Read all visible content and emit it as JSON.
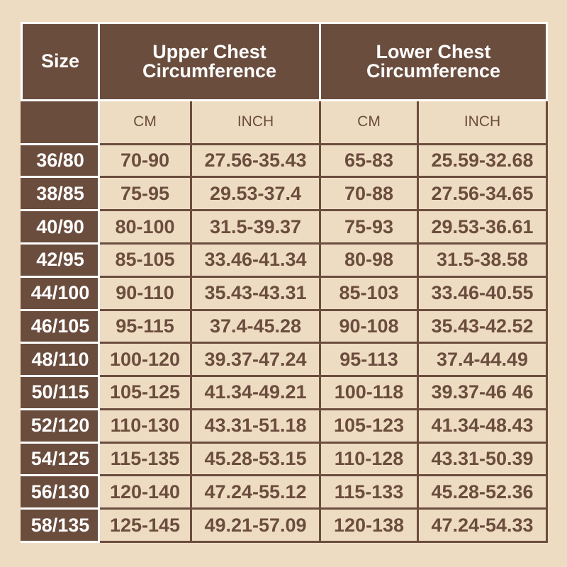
{
  "header": {
    "size": "Size",
    "upper": "Upper Chest Circumference",
    "lower": "Lower Chest Circumference",
    "units": [
      "CM",
      "INCH",
      "CM",
      "INCH"
    ]
  },
  "rows": [
    [
      "36/80",
      "70-90",
      "27.56-35.43",
      "65-83",
      "25.59-32.68"
    ],
    [
      "38/85",
      "75-95",
      "29.53-37.4",
      "70-88",
      "27.56-34.65"
    ],
    [
      "40/90",
      "80-100",
      "31.5-39.37",
      "75-93",
      "29.53-36.61"
    ],
    [
      "42/95",
      "85-105",
      "33.46-41.34",
      "80-98",
      "31.5-38.58"
    ],
    [
      "44/100",
      "90-110",
      "35.43-43.31",
      "85-103",
      "33.46-40.55"
    ],
    [
      "46/105",
      "95-115",
      "37.4-45.28",
      "90-108",
      "35.43-42.52"
    ],
    [
      "48/110",
      "100-120",
      "39.37-47.24",
      "95-113",
      "37.4-44.49"
    ],
    [
      "50/115",
      "105-125",
      "41.34-49.21",
      "100-118",
      "39.37-46 46"
    ],
    [
      "52/120",
      "110-130",
      "43.31-51.18",
      "105-123",
      "41.34-48.43"
    ],
    [
      "54/125",
      "115-135",
      "45.28-53.15",
      "110-128",
      "43.31-50.39"
    ],
    [
      "56/130",
      "120-140",
      "47.24-55.12",
      "115-133",
      "45.28-52.36"
    ],
    [
      "58/135",
      "125-145",
      "49.21-57.09",
      "120-138",
      "47.24-54.33"
    ]
  ],
  "colors": {
    "brown": "#6b4d3e",
    "background": "#eedcc2"
  }
}
